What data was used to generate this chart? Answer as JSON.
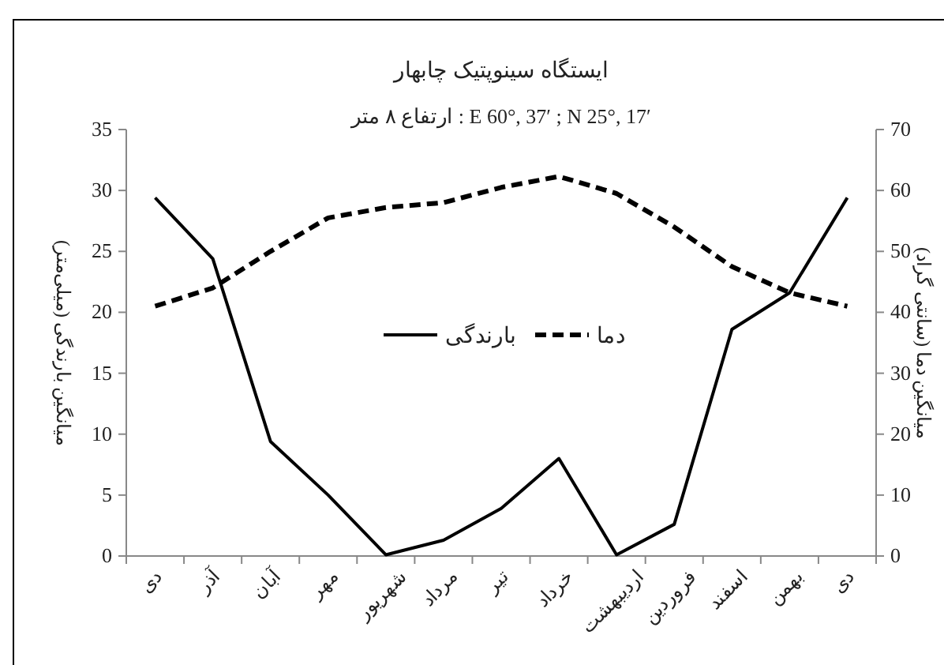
{
  "chart_data": {
    "type": "line",
    "title": "ایستگاه سینوپتیک چابهار",
    "subtitle": "ارتفاع ۸ متر  :  E 60°, 37′ ; N 25°, 17′",
    "ylabel": "میانگین بارندگی (میلی‌متر)",
    "y2label": "میانگین دما (سانتی گراد)",
    "categories": [
      "دی",
      "آذر",
      "آبان",
      "مهر",
      "شهریور",
      "مرداد",
      "تیر",
      "خرداد",
      "اردیبهشت",
      "فروردین",
      "اسفند",
      "بهمن",
      "دی"
    ],
    "series": [
      {
        "name": "بارندگی",
        "color": "#000000",
        "line_style": "solid",
        "values": [
          29.4,
          24.4,
          9.4,
          5,
          0.1,
          1.3,
          3.9,
          8,
          0.1,
          2.6,
          18.6,
          21.6,
          29.4
        ]
      },
      {
        "name": "دما",
        "color": "#000000",
        "line_style": "dashed",
        "axis": "y2",
        "values": [
          41,
          44,
          50,
          55.5,
          57.2,
          58,
          60.5,
          62.3,
          59.5,
          54,
          47.5,
          43.2,
          41
        ]
      }
    ],
    "ylim": [
      0,
      35
    ],
    "yticks": [
      0,
      5,
      10,
      15,
      20,
      25,
      30,
      35
    ],
    "y2lim": [
      0,
      70
    ],
    "y2ticks": [
      0,
      10,
      20,
      30,
      40,
      50,
      60,
      70
    ],
    "grid": false,
    "legend": "center",
    "marker": "none"
  }
}
